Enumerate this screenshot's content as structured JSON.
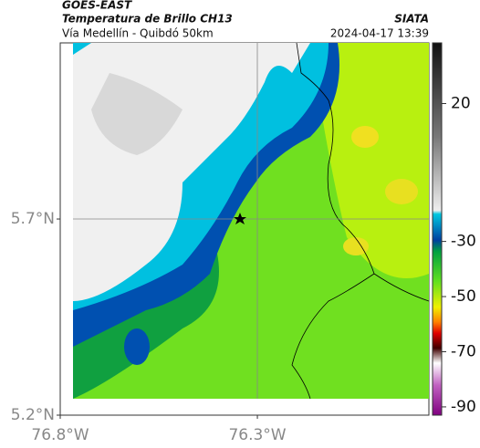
{
  "header": {
    "source": "GOES-EAST",
    "product": "Temperatura de Brillo CH13",
    "route": "Vía Medellín - Quibdó 50km",
    "org": "SIATA",
    "datetime": "2024-04-17 13:39"
  },
  "map": {
    "xlim": [
      -76.8,
      -75.865
    ],
    "ylim": [
      5.2,
      6.149
    ],
    "xticks": [
      {
        "value": -76.8,
        "label": "76.8°W"
      },
      {
        "value": -76.3,
        "label": "76.3°W"
      }
    ],
    "yticks": [
      {
        "value": 5.2,
        "label": "5.2°N"
      },
      {
        "value": 5.7,
        "label": "5.7°N"
      }
    ]
  },
  "colorbar": {
    "clim": [
      -93,
      42
    ],
    "ticks": [
      20,
      -30,
      -50,
      -70,
      -90
    ]
  }
}
